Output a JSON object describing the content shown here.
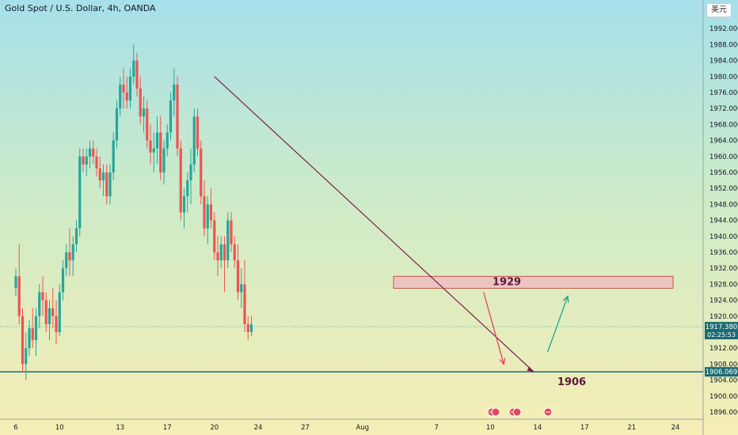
{
  "header": {
    "title": "Gold Spot / U.S. Dollar, 4h, OANDA",
    "currency": "美元"
  },
  "colors": {
    "up": "#26a69a",
    "down": "#ef5350",
    "trendline": "#7b1f4b",
    "support": "#1b6b73",
    "zone_fill": "#f2b8c2",
    "zone_border": "#c0392b",
    "arrow_down": "#e8455a",
    "arrow_up": "#1fa38f",
    "price_label": "#1b6b73"
  },
  "price_labels": {
    "current_price": "1917.380",
    "countdown": "02:25:53",
    "support_price": "1906.069"
  },
  "chart_data": {
    "type": "candlestick",
    "symbol": "Gold Spot / U.S. Dollar",
    "interval": "4h",
    "ylim": [
      1894,
      1996
    ],
    "y_ticks": [
      "1896.000",
      "1900.000",
      "1904.000",
      "1908.000",
      "1912.000",
      "1916.000",
      "1920.000",
      "1924.000",
      "1928.000",
      "1932.000",
      "1936.000",
      "1940.000",
      "1944.000",
      "1948.000",
      "1952.000",
      "1956.000",
      "1960.000",
      "1964.000",
      "1968.000",
      "1972.000",
      "1976.000",
      "1980.000",
      "1984.000",
      "1988.000",
      "1992.000"
    ],
    "x_ticks": [
      {
        "label": "6",
        "bar": 0
      },
      {
        "label": "10",
        "bar": 13
      },
      {
        "label": "13",
        "bar": 31
      },
      {
        "label": "17",
        "bar": 45
      },
      {
        "label": "20",
        "bar": 59
      },
      {
        "label": "24",
        "bar": 72
      },
      {
        "label": "27",
        "bar": 86
      },
      {
        "label": "Aug",
        "bar": 103
      },
      {
        "label": "7",
        "bar": 125
      },
      {
        "label": "10",
        "bar": 141
      },
      {
        "label": "14",
        "bar": 155
      },
      {
        "label": "17",
        "bar": 169
      },
      {
        "label": "21",
        "bar": 183
      },
      {
        "label": "24",
        "bar": 196
      }
    ],
    "ohlc": [
      [
        1927,
        1932,
        1925,
        1930
      ],
      [
        1930,
        1938,
        1918,
        1920
      ],
      [
        1920,
        1922,
        1906,
        1908
      ],
      [
        1908,
        1916,
        1904,
        1912
      ],
      [
        1912,
        1919,
        1910,
        1917
      ],
      [
        1917,
        1922,
        1912,
        1914
      ],
      [
        1914,
        1922,
        1910,
        1920
      ],
      [
        1920,
        1928,
        1917,
        1926
      ],
      [
        1926,
        1930,
        1920,
        1924
      ],
      [
        1924,
        1926,
        1916,
        1918
      ],
      [
        1918,
        1924,
        1914,
        1922
      ],
      [
        1922,
        1927,
        1917,
        1920
      ],
      [
        1920,
        1924,
        1913,
        1916
      ],
      [
        1916,
        1928,
        1915,
        1926
      ],
      [
        1926,
        1934,
        1924,
        1932
      ],
      [
        1932,
        1938,
        1930,
        1936
      ],
      [
        1936,
        1942,
        1930,
        1934
      ],
      [
        1934,
        1940,
        1930,
        1938
      ],
      [
        1938,
        1944,
        1936,
        1942
      ],
      [
        1942,
        1962,
        1940,
        1960
      ],
      [
        1960,
        1962,
        1956,
        1958
      ],
      [
        1958,
        1962,
        1955,
        1960
      ],
      [
        1960,
        1964,
        1957,
        1962
      ],
      [
        1962,
        1964,
        1958,
        1960
      ],
      [
        1960,
        1962,
        1955,
        1957
      ],
      [
        1957,
        1960,
        1952,
        1954
      ],
      [
        1954,
        1958,
        1950,
        1956
      ],
      [
        1956,
        1958,
        1948,
        1950
      ],
      [
        1950,
        1958,
        1948,
        1956
      ],
      [
        1956,
        1966,
        1954,
        1964
      ],
      [
        1964,
        1974,
        1962,
        1972
      ],
      [
        1972,
        1980,
        1970,
        1978
      ],
      [
        1978,
        1982,
        1972,
        1976
      ],
      [
        1976,
        1980,
        1972,
        1974
      ],
      [
        1974,
        1982,
        1972,
        1980
      ],
      [
        1980,
        1988,
        1978,
        1984
      ],
      [
        1984,
        1986,
        1975,
        1977
      ],
      [
        1977,
        1980,
        1968,
        1970
      ],
      [
        1970,
        1975,
        1966,
        1972
      ],
      [
        1972,
        1974,
        1962,
        1964
      ],
      [
        1964,
        1968,
        1958,
        1961
      ],
      [
        1961,
        1966,
        1956,
        1962
      ],
      [
        1962,
        1970,
        1958,
        1966
      ],
      [
        1966,
        1970,
        1954,
        1956
      ],
      [
        1956,
        1964,
        1953,
        1962
      ],
      [
        1962,
        1968,
        1960,
        1966
      ],
      [
        1966,
        1976,
        1964,
        1974
      ],
      [
        1974,
        1982,
        1970,
        1978
      ],
      [
        1978,
        1980,
        1960,
        1962
      ],
      [
        1962,
        1964,
        1944,
        1946
      ],
      [
        1946,
        1952,
        1942,
        1950
      ],
      [
        1950,
        1956,
        1946,
        1954
      ],
      [
        1954,
        1962,
        1948,
        1958
      ],
      [
        1958,
        1972,
        1956,
        1970
      ],
      [
        1970,
        1972,
        1960,
        1962
      ],
      [
        1962,
        1964,
        1948,
        1950
      ],
      [
        1950,
        1954,
        1940,
        1942
      ],
      [
        1942,
        1950,
        1938,
        1948
      ],
      [
        1948,
        1952,
        1942,
        1944
      ],
      [
        1944,
        1946,
        1934,
        1936
      ],
      [
        1936,
        1940,
        1930,
        1934
      ],
      [
        1934,
        1940,
        1932,
        1938
      ],
      [
        1938,
        1940,
        1926,
        1934
      ],
      [
        1934,
        1946,
        1932,
        1944
      ],
      [
        1944,
        1946,
        1936,
        1938
      ],
      [
        1938,
        1940,
        1932,
        1934
      ],
      [
        1934,
        1938,
        1924,
        1926
      ],
      [
        1926,
        1932,
        1922,
        1928
      ],
      [
        1928,
        1934,
        1916,
        1918
      ],
      [
        1918,
        1920,
        1914,
        1916
      ],
      [
        1916,
        1920,
        1915,
        1918
      ]
    ],
    "trendline": {
      "from": {
        "bar": 59,
        "price": 1980
      },
      "to": {
        "bar": 154,
        "price": 1906
      }
    },
    "support_line": {
      "price": 1906.069,
      "label": "1906"
    },
    "resistance_zone": {
      "price_top": 1930,
      "price_bottom": 1927,
      "label": "1929"
    },
    "projection": {
      "down_arrow": {
        "from": {
          "bar": 139,
          "price": 1926
        },
        "to": {
          "bar": 145,
          "price": 1908
        }
      },
      "up_arrow": {
        "from": {
          "bar": 158,
          "price": 1911
        },
        "to": {
          "bar": 164,
          "price": 1925
        }
      }
    },
    "current_price": 1917.38
  }
}
